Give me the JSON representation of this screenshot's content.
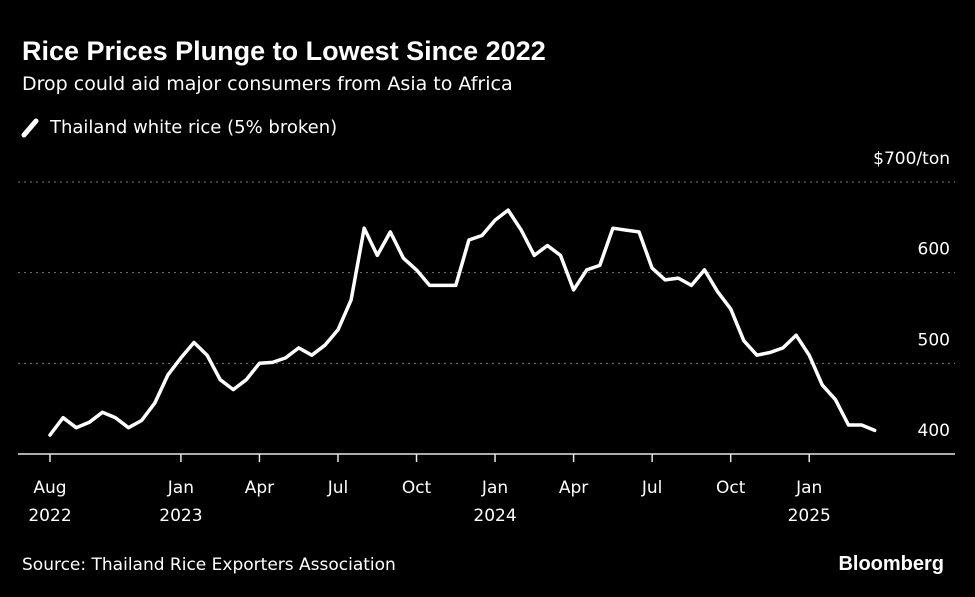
{
  "chart_data": {
    "type": "line",
    "title": "Rice Prices Plunge to Lowest Since 2022",
    "subtitle": "Drop could aid major consumers from Asia to Africa",
    "source": "Source: Thailand Rice Exporters Association",
    "brand": "Bloomberg",
    "categories": [
      "Aug\n2022",
      null,
      null,
      null,
      null,
      null,
      null,
      null,
      null,
      null,
      "Jan\n2023",
      null,
      null,
      null,
      null,
      null,
      "Apr",
      null,
      null,
      null,
      null,
      null,
      "Jul",
      null,
      null,
      null,
      null,
      null,
      "Oct",
      null,
      null,
      null,
      null,
      null,
      "Jan\n2024",
      null,
      null,
      null,
      null,
      null,
      "Apr",
      null,
      null,
      null,
      null,
      null,
      "Jul",
      null,
      null,
      null,
      null,
      null,
      "Oct",
      null,
      null,
      null,
      null,
      null,
      "Jan\n2025",
      null,
      null,
      null,
      null,
      null
    ],
    "series": [
      {
        "name": "Thailand white rice (5% broken)",
        "color": "#ffffff",
        "values": [
          421,
          440,
          429,
          435,
          446,
          440,
          429,
          437,
          456,
          487,
          506,
          523,
          509,
          482,
          471,
          482,
          500,
          501,
          506,
          517,
          509,
          520,
          537,
          570,
          649,
          619,
          645,
          616,
          603,
          586,
          586,
          586,
          636,
          641,
          658,
          669,
          647,
          619,
          630,
          619,
          581,
          603,
          608,
          649,
          647,
          645,
          605,
          592,
          594,
          586,
          603,
          579,
          560,
          525,
          509,
          512,
          517,
          531,
          509,
          476,
          460,
          432,
          432,
          426
        ]
      }
    ],
    "ylim": [
      400,
      700
    ],
    "yticks": [
      400,
      500,
      600,
      {
        "value": 700,
        "label": "$700/ton"
      }
    ],
    "grid": true
  }
}
